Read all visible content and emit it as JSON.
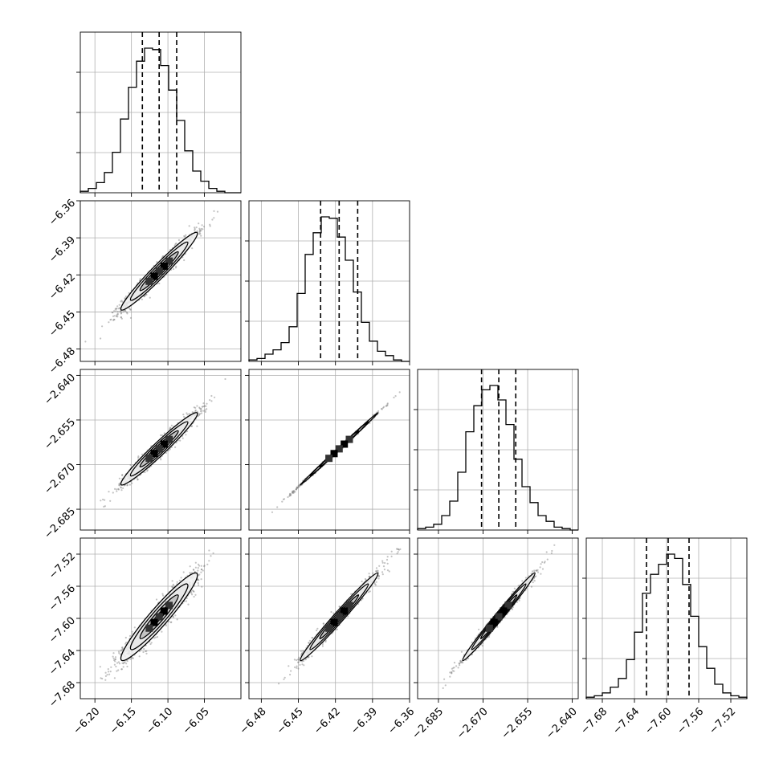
{
  "chart_data": {
    "type": "corner",
    "title": "",
    "grid": true,
    "parameters": [
      {
        "id": "p0",
        "range": [
          -6.22,
          -6.0
        ],
        "ticks": [
          -6.2,
          -6.15,
          -6.1,
          -6.05
        ],
        "tick_labels": [
          "−6.20",
          "−6.15",
          "−6.10",
          "−6.05"
        ],
        "mean": -6.112,
        "sigma": 0.025,
        "quantiles": [
          -6.135,
          -6.112,
          -6.088
        ]
      },
      {
        "id": "p1",
        "range": [
          -6.49,
          -6.36
        ],
        "ticks": [
          -6.48,
          -6.45,
          -6.42,
          -6.39,
          -6.36
        ],
        "tick_labels": [
          "−6.48",
          "−6.45",
          "−6.42",
          "−6.39",
          "−6.36"
        ],
        "mean": -6.417,
        "sigma": 0.015,
        "quantiles": [
          -6.432,
          -6.417,
          -6.402
        ]
      },
      {
        "id": "p2",
        "range": [
          -2.692,
          -2.638
        ],
        "ticks": [
          -2.685,
          -2.67,
          -2.655,
          -2.64
        ],
        "tick_labels": [
          "−2.685",
          "−2.670",
          "−2.655",
          "−2.640"
        ],
        "mean": -2.6647,
        "sigma": 0.0058,
        "quantiles": [
          -2.6705,
          -2.6647,
          -2.659
        ]
      },
      {
        "id": "p3",
        "range": [
          -7.7,
          -7.5
        ],
        "ticks": [
          -7.68,
          -7.64,
          -7.6,
          -7.56,
          -7.52
        ],
        "tick_labels": [
          "−7.68",
          "−7.64",
          "−7.60",
          "−7.56",
          "−7.52"
        ],
        "mean": -7.598,
        "sigma": 0.026,
        "quantiles": [
          -7.625,
          -7.598,
          -7.572
        ]
      }
    ],
    "histograms": [
      {
        "param": "p0",
        "bins": 20,
        "counts": [
          1,
          3,
          7,
          14,
          28,
          51,
          73,
          91,
          100,
          99,
          88,
          71,
          50,
          29,
          15,
          8,
          3,
          1,
          0,
          0
        ]
      },
      {
        "param": "p1",
        "bins": 20,
        "counts": [
          1,
          2,
          5,
          8,
          13,
          24,
          47,
          74,
          89,
          100,
          99,
          86,
          70,
          48,
          27,
          14,
          7,
          4,
          1,
          0
        ]
      },
      {
        "param": "p2",
        "bins": 20,
        "counts": [
          1,
          2,
          4,
          10,
          20,
          40,
          68,
          86,
          97,
          100,
          90,
          73,
          49,
          30,
          19,
          10,
          6,
          2,
          1,
          0
        ]
      },
      {
        "param": "p3",
        "bins": 20,
        "counts": [
          1,
          2,
          4,
          8,
          14,
          27,
          46,
          73,
          86,
          93,
          100,
          97,
          79,
          57,
          36,
          21,
          10,
          4,
          2,
          1
        ]
      }
    ],
    "pairs": [
      {
        "x": "p0",
        "y": "p1",
        "correlation": 0.97
      },
      {
        "x": "p0",
        "y": "p2",
        "correlation": 0.97
      },
      {
        "x": "p1",
        "y": "p2",
        "correlation": 0.999
      },
      {
        "x": "p0",
        "y": "p3",
        "correlation": 0.95
      },
      {
        "x": "p1",
        "y": "p3",
        "correlation": 0.985
      },
      {
        "x": "p2",
        "y": "p3",
        "correlation": 0.99
      }
    ],
    "contour_levels_sigma": [
      0.5,
      1.0,
      1.5,
      2.0
    ],
    "colors": {
      "line": "#000000",
      "points": "#7a7a7a",
      "fill_light": "#e6e6e6",
      "fill_mid": "#bdbdbd",
      "fill_dark": "#8a8a8a",
      "grid": "#b0b0b0"
    }
  }
}
